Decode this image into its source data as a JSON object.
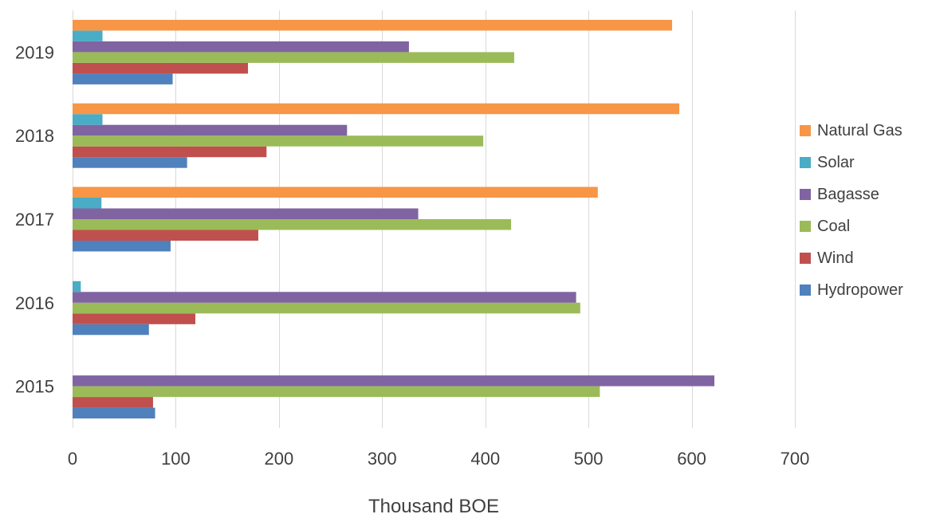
{
  "chart_data": {
    "type": "bar",
    "orientation": "horizontal",
    "categories": [
      "2015",
      "2016",
      "2017",
      "2018",
      "2019"
    ],
    "series": [
      {
        "name": "Hydropower",
        "color": "#4F81BD",
        "values": [
          80,
          74,
          95,
          111,
          97
        ]
      },
      {
        "name": "Wind",
        "color": "#C0504D",
        "values": [
          78,
          119,
          180,
          188,
          170
        ]
      },
      {
        "name": "Coal",
        "color": "#9BBB59",
        "values": [
          511,
          492,
          425,
          398,
          428
        ]
      },
      {
        "name": "Bagasse",
        "color": "#8064A2",
        "values": [
          622,
          488,
          335,
          266,
          326
        ]
      },
      {
        "name": "Solar",
        "color": "#4BACC6",
        "values": [
          0,
          8,
          28,
          29,
          29
        ]
      },
      {
        "name": "Natural Gas",
        "color": "#F79646",
        "values": [
          0,
          0,
          509,
          588,
          581
        ]
      }
    ],
    "legend_order": [
      "Natural Gas",
      "Solar",
      "Bagasse",
      "Coal",
      "Wind",
      "Hydropower"
    ],
    "xlabel": "Thousand BOE",
    "ylabel": "",
    "xlim": [
      0,
      700
    ],
    "x_ticks": [
      0,
      100,
      200,
      300,
      400,
      500,
      600,
      700
    ],
    "grid": "vertical",
    "legend_position": "right"
  }
}
